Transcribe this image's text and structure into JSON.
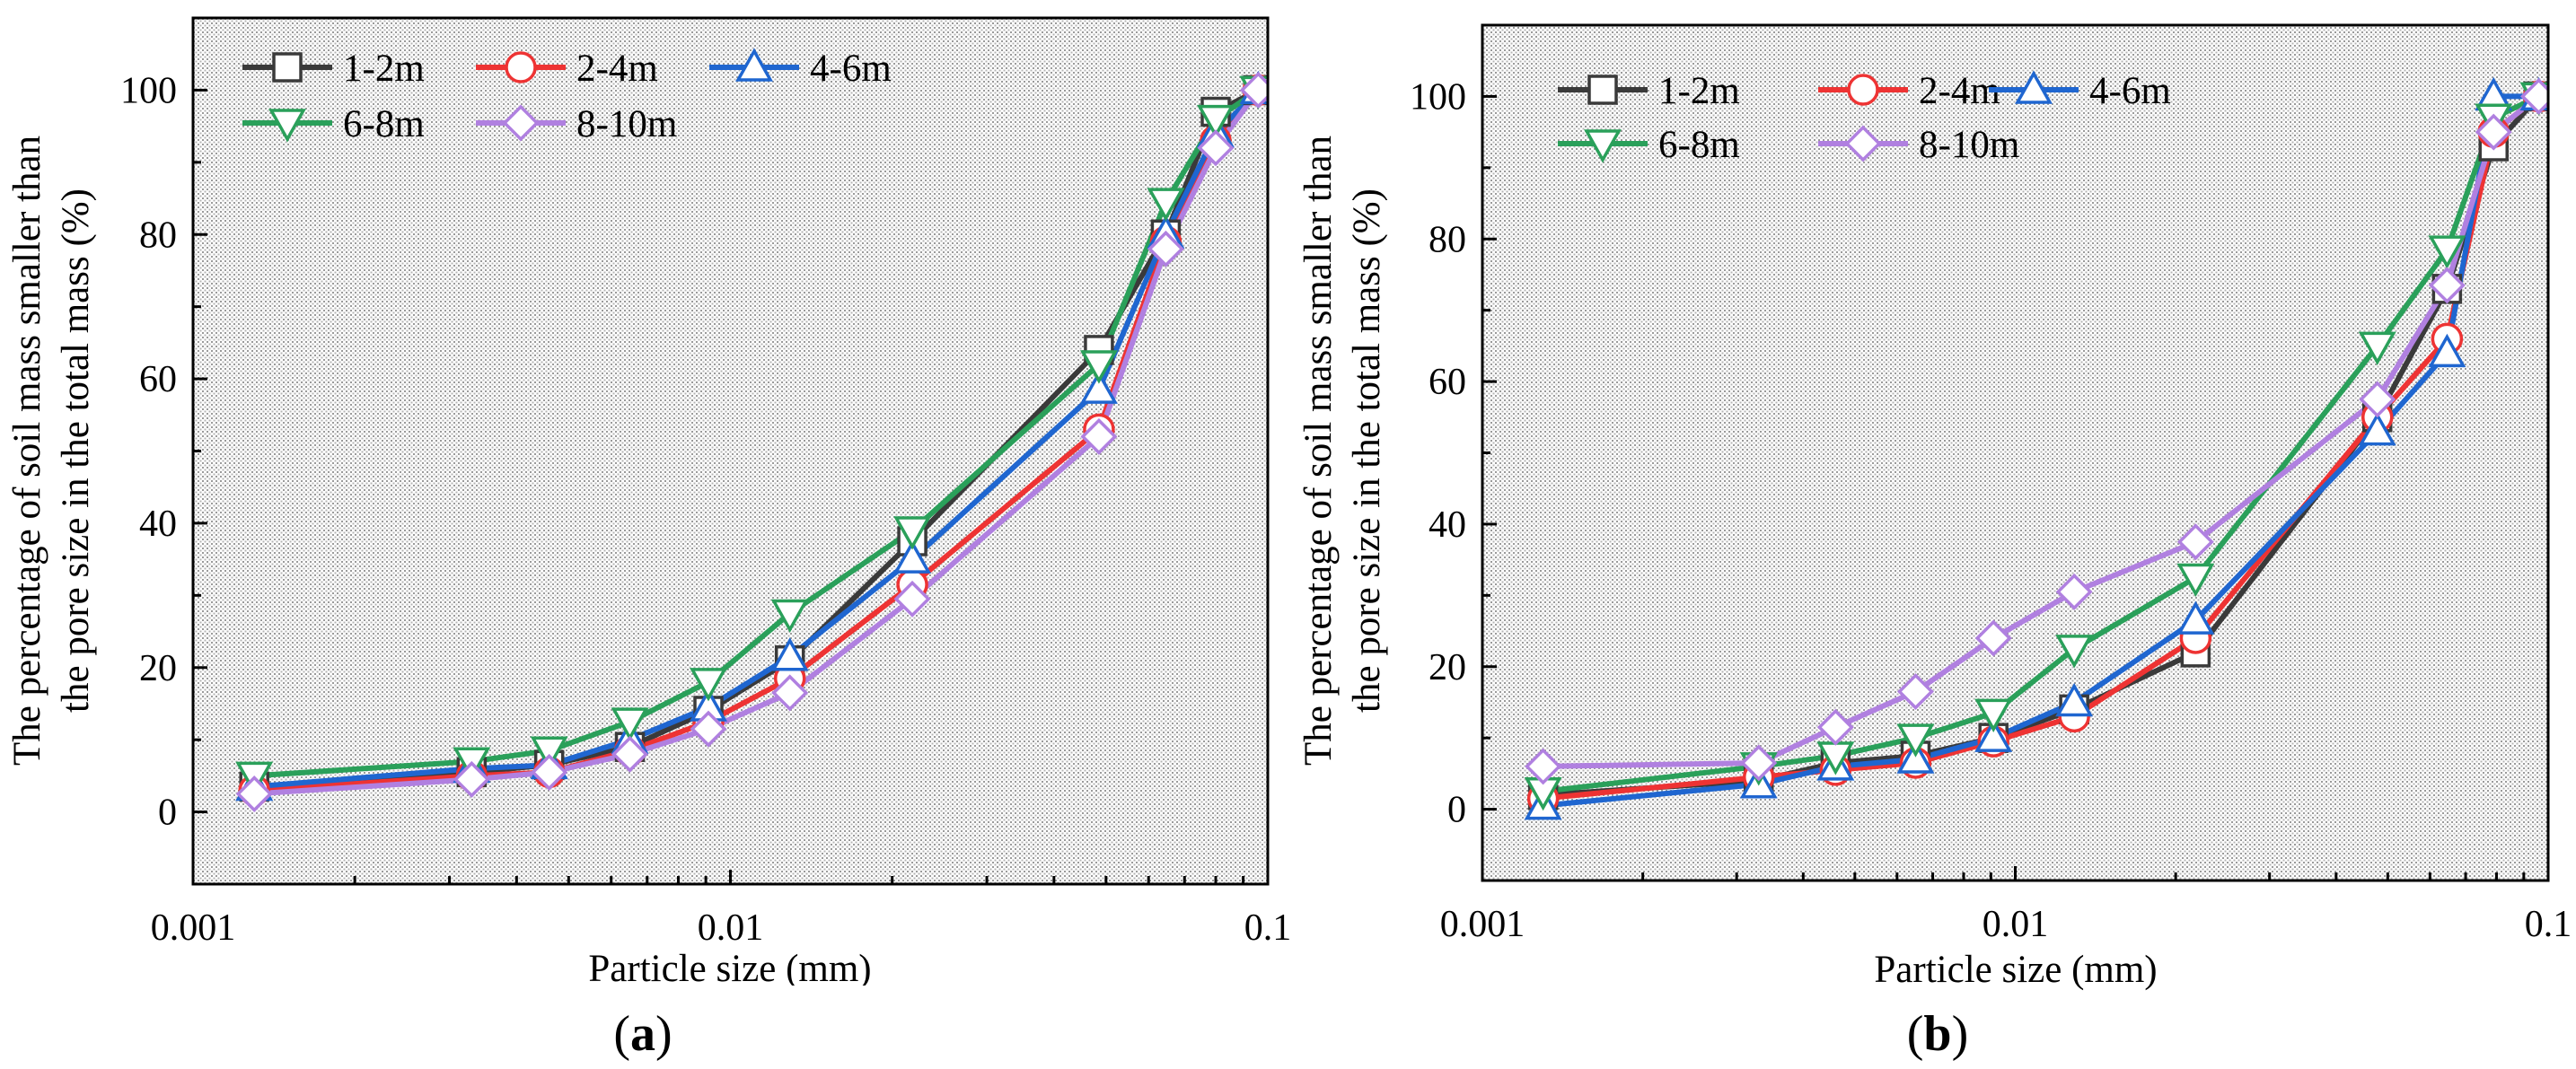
{
  "chart_data": [
    {
      "type": "line",
      "panel_label": "(a)",
      "panel_letter": "a",
      "xlabel": "Particle size (mm)",
      "ylabel_line1": "The percentage of soil mass smaller than",
      "ylabel_line2": "the pore size in the total mass (%)",
      "xscale": "log",
      "xlim": [
        0.001,
        0.1
      ],
      "ylim": [
        -10,
        110
      ],
      "xticks": [
        0.001,
        0.01,
        0.1
      ],
      "xtick_labels": [
        "0.001",
        "0.01",
        "0.1"
      ],
      "yticks": [
        0,
        20,
        40,
        60,
        80,
        100
      ],
      "ytick_labels": [
        "0",
        "20",
        "40",
        "60",
        "80",
        "100"
      ],
      "background": "shaded",
      "legend_position": "top-left",
      "x": [
        0.0013,
        0.0033,
        0.0046,
        0.0065,
        0.0091,
        0.0129,
        0.0218,
        0.0485,
        0.0646,
        0.08,
        0.096
      ],
      "series": [
        {
          "name": "1-2m",
          "color": "#3a3a3a",
          "marker": "square",
          "values": [
            3.5,
            5.5,
            6.5,
            9.0,
            14.0,
            21.0,
            37.5,
            64.0,
            80.0,
            97.0,
            100
          ]
        },
        {
          "name": "2-4m",
          "color": "#ee3333",
          "marker": "circle",
          "values": [
            3.0,
            5.0,
            5.5,
            8.5,
            12.5,
            18.5,
            31.5,
            53.0,
            79.0,
            93.0,
            100
          ]
        },
        {
          "name": "4-6m",
          "color": "#1f66d0",
          "marker": "triangle-up",
          "values": [
            3.5,
            6.0,
            6.5,
            10.0,
            14.5,
            21.5,
            35.0,
            58.5,
            80.0,
            94.0,
            100
          ]
        },
        {
          "name": "6-8m",
          "color": "#2aa05a",
          "marker": "triangle-down",
          "values": [
            5.0,
            7.0,
            8.5,
            12.5,
            18.0,
            27.5,
            39.0,
            62.0,
            84.5,
            96.0,
            100
          ]
        },
        {
          "name": "8-10m",
          "color": "#b080e0",
          "marker": "diamond",
          "values": [
            2.5,
            4.5,
            5.5,
            8.0,
            11.5,
            16.5,
            29.5,
            52.0,
            78.0,
            92.0,
            100
          ]
        }
      ]
    },
    {
      "type": "line",
      "panel_label": "(b)",
      "panel_letter": "b",
      "xlabel": "Particle size (mm)",
      "ylabel_line1": "The percentage of soil mass smaller than",
      "ylabel_line2": "the pore size in the total mass (%)",
      "xscale": "log",
      "xlim": [
        0.001,
        0.1
      ],
      "ylim": [
        -10,
        110
      ],
      "xticks": [
        0.001,
        0.01,
        0.1
      ],
      "xtick_labels": [
        "0.001",
        "0.01",
        "0.1"
      ],
      "yticks": [
        0,
        20,
        40,
        60,
        80,
        100
      ],
      "ytick_labels": [
        "0",
        "20",
        "40",
        "60",
        "80",
        "100"
      ],
      "background": "shaded",
      "legend_position": "top-left",
      "x": [
        0.0013,
        0.0033,
        0.0046,
        0.0065,
        0.0091,
        0.0129,
        0.0218,
        0.0478,
        0.0646,
        0.079,
        0.096
      ],
      "series": [
        {
          "name": "1-2m",
          "color": "#3a3a3a",
          "marker": "square",
          "values": [
            2.0,
            4.0,
            6.5,
            7.5,
            10.0,
            14.0,
            22.0,
            55.0,
            73.0,
            93.0,
            100
          ]
        },
        {
          "name": "2-4m",
          "color": "#ee3333",
          "marker": "circle",
          "values": [
            1.5,
            4.5,
            5.5,
            6.5,
            9.5,
            13.0,
            24.0,
            55.0,
            66.0,
            95.0,
            100
          ]
        },
        {
          "name": "4-6m",
          "color": "#1f66d0",
          "marker": "triangle-up",
          "values": [
            0.5,
            3.5,
            6.0,
            7.0,
            10.0,
            15.0,
            26.5,
            53.0,
            64.0,
            100.0,
            100
          ]
        },
        {
          "name": "6-8m",
          "color": "#2aa05a",
          "marker": "triangle-down",
          "values": [
            2.5,
            6.0,
            7.5,
            10.0,
            13.5,
            22.5,
            32.5,
            65.0,
            78.5,
            97.0,
            100
          ]
        },
        {
          "name": "8-10m",
          "color": "#b080e0",
          "marker": "diamond",
          "values": [
            6.0,
            6.5,
            11.5,
            16.5,
            24.0,
            30.5,
            37.5,
            57.5,
            73.5,
            95.0,
            100
          ]
        }
      ]
    }
  ]
}
